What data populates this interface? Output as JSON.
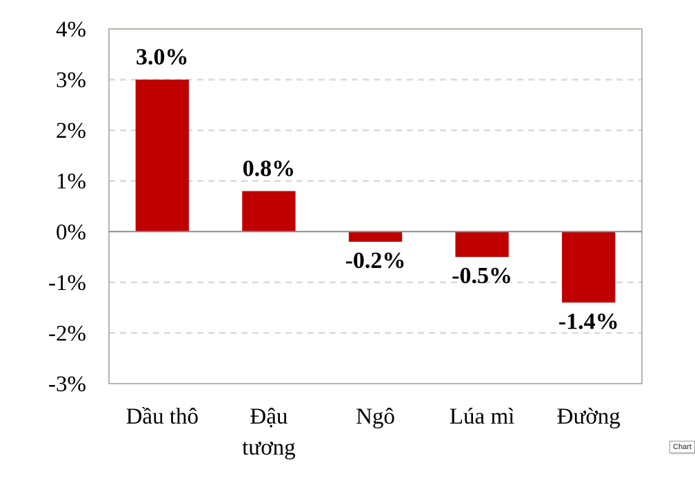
{
  "chart_data": {
    "type": "bar",
    "categories": [
      "Dầu thô",
      "Đậu tương",
      "Ngô",
      "Lúa mì",
      "Đường"
    ],
    "category_lines": [
      [
        "Dầu thô"
      ],
      [
        "Đậu",
        "tương"
      ],
      [
        "Ngô"
      ],
      [
        "Lúa mì"
      ],
      [
        "Đường"
      ]
    ],
    "values": [
      3.0,
      0.8,
      -0.2,
      -0.5,
      -1.4
    ],
    "data_labels": [
      "3.0%",
      "0.8%",
      "-0.2%",
      "-0.5%",
      "-1.4%"
    ],
    "ylim": [
      -3,
      4
    ],
    "yticks": [
      4,
      3,
      2,
      1,
      0,
      -1,
      -2,
      -3
    ],
    "ytick_labels": [
      "4%",
      "3%",
      "2%",
      "1%",
      "0%",
      "-1%",
      "-2%",
      "-3%"
    ],
    "grid": true,
    "bar_color": "#c00000",
    "title": "",
    "xlabel": "",
    "ylabel": ""
  },
  "tooltip": {
    "text": "Chart"
  }
}
